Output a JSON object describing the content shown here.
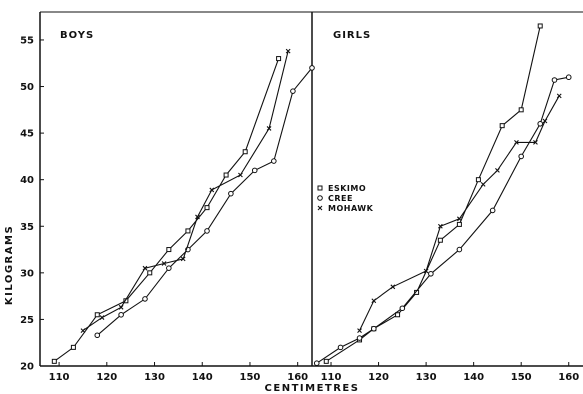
{
  "chart_data": {
    "type": "line",
    "title": "",
    "xlabel": "CENTIMETRES",
    "ylabel": "KILOGRAMS",
    "ylim": [
      20,
      58
    ],
    "grid": false,
    "legend": {
      "placement": "center",
      "entries": [
        {
          "name": "ESKIMO",
          "marker": "square"
        },
        {
          "name": "CREE",
          "marker": "circle"
        },
        {
          "name": "MOHAWK",
          "marker": "x"
        }
      ]
    },
    "y_ticks": [
      20,
      25,
      30,
      35,
      40,
      45,
      50,
      55
    ],
    "panels": [
      {
        "title": "BOYS",
        "xlim": [
          106,
          163
        ],
        "x_ticks": [
          110,
          120,
          130,
          140,
          150,
          160
        ],
        "series": [
          {
            "name": "ESKIMO",
            "x": [
              109,
              113,
              118,
              124,
              129,
              133,
              137,
              141,
              145,
              149,
              156
            ],
            "y": [
              20.5,
              22,
              25.5,
              27,
              30,
              32.5,
              34.5,
              37,
              40.5,
              43,
              53
            ]
          },
          {
            "name": "CREE",
            "x": [
              118,
              123,
              128,
              133,
              137,
              141,
              146,
              151,
              155,
              159,
              163
            ],
            "y": [
              23.3,
              25.5,
              27.2,
              30.5,
              32.5,
              34.5,
              38.5,
              41,
              42,
              49.5,
              52
            ]
          },
          {
            "name": "MOHAWK",
            "x": [
              115,
              119,
              123,
              128,
              132,
              136,
              139,
              142,
              148,
              154,
              158
            ],
            "y": [
              23.8,
              25.2,
              26.3,
              30.5,
              31,
              31.5,
              36,
              38.9,
              40.5,
              45.5,
              53.8
            ]
          }
        ]
      },
      {
        "title": "GIRLS",
        "xlim": [
          106,
          163
        ],
        "x_ticks": [
          110,
          120,
          130,
          140,
          150,
          160
        ],
        "series": [
          {
            "name": "ESKIMO",
            "x": [
              109,
              116,
              119,
              124,
              128,
              133,
              137,
              141,
              146,
              150,
              154
            ],
            "y": [
              20.5,
              22.8,
              24,
              25.5,
              27.9,
              33.5,
              35.2,
              40,
              45.8,
              47.5,
              56.5
            ]
          },
          {
            "name": "CREE",
            "x": [
              107,
              112,
              116,
              119,
              125,
              131,
              137,
              144,
              150,
              154,
              157,
              160
            ],
            "y": [
              20.3,
              22,
              23,
              24,
              26.2,
              29.9,
              32.5,
              36.7,
              42.5,
              46,
              50.7,
              51
            ]
          },
          {
            "name": "MOHAWK",
            "x": [
              116,
              119,
              123,
              130,
              133,
              137,
              142,
              145,
              149,
              153,
              155,
              158
            ],
            "y": [
              23.8,
              27,
              28.5,
              30.2,
              35,
              35.8,
              39.5,
              41,
              44,
              44,
              46.3,
              49
            ]
          }
        ]
      }
    ]
  }
}
